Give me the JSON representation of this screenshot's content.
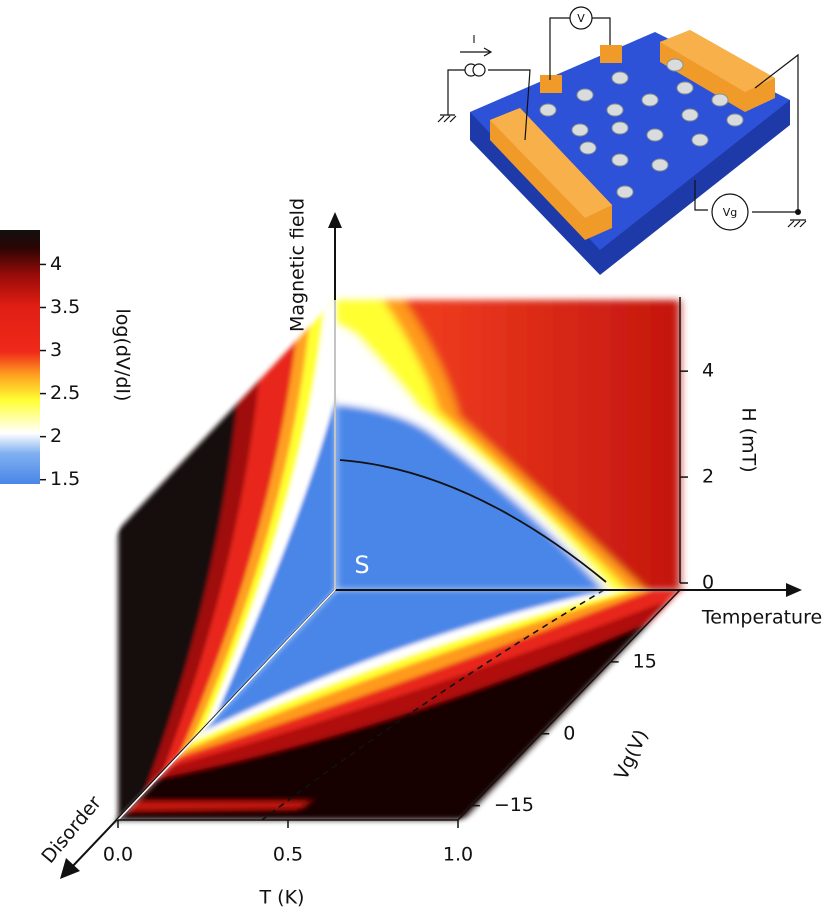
{
  "chart_data": {
    "type": "phase-diagram",
    "colorbar": {
      "label": "log(dV/dI)",
      "lim": [
        1.45,
        4.4
      ],
      "ticks": [
        1.5,
        2.0,
        2.5,
        3.0,
        3.5,
        4.0
      ]
    },
    "t_axis": {
      "label": "T (K)",
      "lim": [
        0,
        1
      ],
      "ticks": [
        {
          "value": 0,
          "label": "0.0"
        },
        0.5,
        {
          "value": 1,
          "label": "1.0"
        }
      ]
    },
    "h_axis": {
      "label": "H (mT)",
      "lim": [
        0,
        5.4
      ],
      "ticks": [
        0,
        2,
        4
      ]
    },
    "vg_axis": {
      "label": "Vg(V)",
      "lim": [
        -18,
        30
      ],
      "ticks": [
        15,
        0,
        {
          "value": -15,
          "label": "−15"
        }
      ]
    },
    "axis_titles": {
      "vertical": "Magnetic field",
      "horizontal": "Temperature",
      "depth": "Disorder"
    },
    "region_label": "S"
  },
  "inset": {
    "current": "I",
    "voltage": "V",
    "gate": "Vg"
  }
}
